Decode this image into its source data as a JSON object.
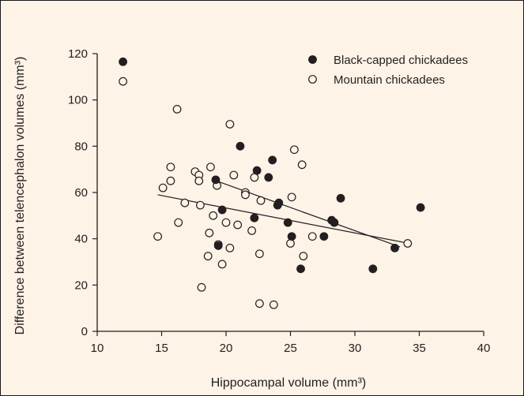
{
  "chart_data": {
    "type": "scatter",
    "xlabel": "Hippocampal volume (mm³)",
    "ylabel": "Difference between telencephalon volumes (mm³)",
    "xlim": [
      10,
      40
    ],
    "ylim": [
      0,
      120
    ],
    "xticks": [
      10,
      15,
      20,
      25,
      30,
      35,
      40
    ],
    "yticks": [
      0,
      20,
      40,
      60,
      80,
      100,
      120
    ],
    "grid": false,
    "legend_position": "top-right",
    "series": [
      {
        "name": "Black-capped chickadees",
        "marker": "filled-circle",
        "color": "#231f20",
        "points": [
          [
            12.0,
            116.5
          ],
          [
            19.2,
            65.5
          ],
          [
            19.4,
            37.0
          ],
          [
            19.7,
            52.5
          ],
          [
            21.1,
            80.0
          ],
          [
            22.2,
            49.0
          ],
          [
            22.4,
            69.5
          ],
          [
            23.3,
            66.5
          ],
          [
            23.6,
            74.0
          ],
          [
            24.0,
            54.5
          ],
          [
            24.1,
            55.5
          ],
          [
            24.8,
            47.0
          ],
          [
            25.1,
            41.0
          ],
          [
            25.8,
            27.0
          ],
          [
            27.6,
            41.0
          ],
          [
            28.2,
            48.0
          ],
          [
            28.4,
            47.0
          ],
          [
            28.9,
            57.5
          ],
          [
            31.4,
            27.0
          ],
          [
            33.1,
            36.0
          ],
          [
            35.1,
            53.5
          ]
        ],
        "trend": [
          [
            19.0,
            65.5
          ],
          [
            33.5,
            36.5
          ]
        ]
      },
      {
        "name": "Mountain chickadees",
        "marker": "open-circle",
        "color": "#231f20",
        "points": [
          [
            12.0,
            108.0
          ],
          [
            14.7,
            41.0
          ],
          [
            15.1,
            62.0
          ],
          [
            15.7,
            71.0
          ],
          [
            15.7,
            65.0
          ],
          [
            16.2,
            96.0
          ],
          [
            16.3,
            47.0
          ],
          [
            16.8,
            55.5
          ],
          [
            17.6,
            69.0
          ],
          [
            17.9,
            67.5
          ],
          [
            17.9,
            65.0
          ],
          [
            18.0,
            54.5
          ],
          [
            18.1,
            19.0
          ],
          [
            18.6,
            32.5
          ],
          [
            18.7,
            42.5
          ],
          [
            18.8,
            71.0
          ],
          [
            19.0,
            50.0
          ],
          [
            19.3,
            63.0
          ],
          [
            19.4,
            37.5
          ],
          [
            19.7,
            29.0
          ],
          [
            20.0,
            47.0
          ],
          [
            20.3,
            89.5
          ],
          [
            20.3,
            36.0
          ],
          [
            20.6,
            67.5
          ],
          [
            20.9,
            46.0
          ],
          [
            21.5,
            60.0
          ],
          [
            21.5,
            59.0
          ],
          [
            22.0,
            43.5
          ],
          [
            22.2,
            66.5
          ],
          [
            22.6,
            33.5
          ],
          [
            22.6,
            12.0
          ],
          [
            22.7,
            56.5
          ],
          [
            23.7,
            11.5
          ],
          [
            25.0,
            38.0
          ],
          [
            25.1,
            58.0
          ],
          [
            25.3,
            78.5
          ],
          [
            25.9,
            72.0
          ],
          [
            26.0,
            32.5
          ],
          [
            26.7,
            41.0
          ],
          [
            34.1,
            38.0
          ]
        ],
        "trend": [
          [
            14.7,
            59.0
          ],
          [
            34.2,
            38.0
          ]
        ]
      }
    ]
  }
}
